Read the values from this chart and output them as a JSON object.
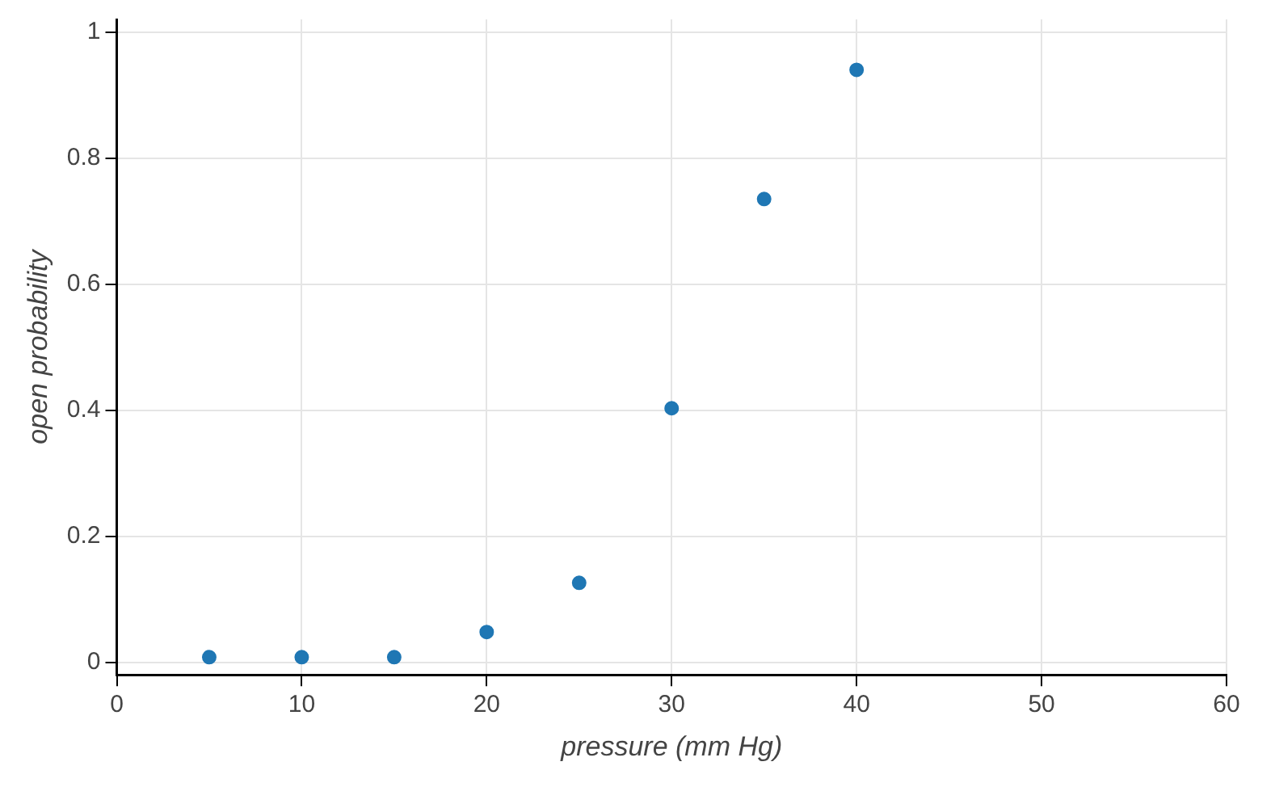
{
  "chart_data": {
    "type": "scatter",
    "xlabel": "pressure (mm Hg)",
    "ylabel": "open probability",
    "x": [
      5,
      10,
      15,
      20,
      25,
      30,
      35,
      40
    ],
    "series": [
      {
        "color": "#1f77b4",
        "values": [
          0.008,
          0.008,
          0.008,
          0.048,
          0.126,
          0.403,
          0.735,
          0.94
        ]
      }
    ],
    "xlim": [
      0,
      60
    ],
    "xticks": [
      0,
      10,
      20,
      30,
      40,
      50,
      60
    ],
    "ylim": [
      -0.02,
      1.02
    ],
    "yticks": [
      0,
      0.2,
      0.4,
      0.6,
      0.8,
      1
    ],
    "grid": true,
    "marker": "circle",
    "legend": false
  }
}
